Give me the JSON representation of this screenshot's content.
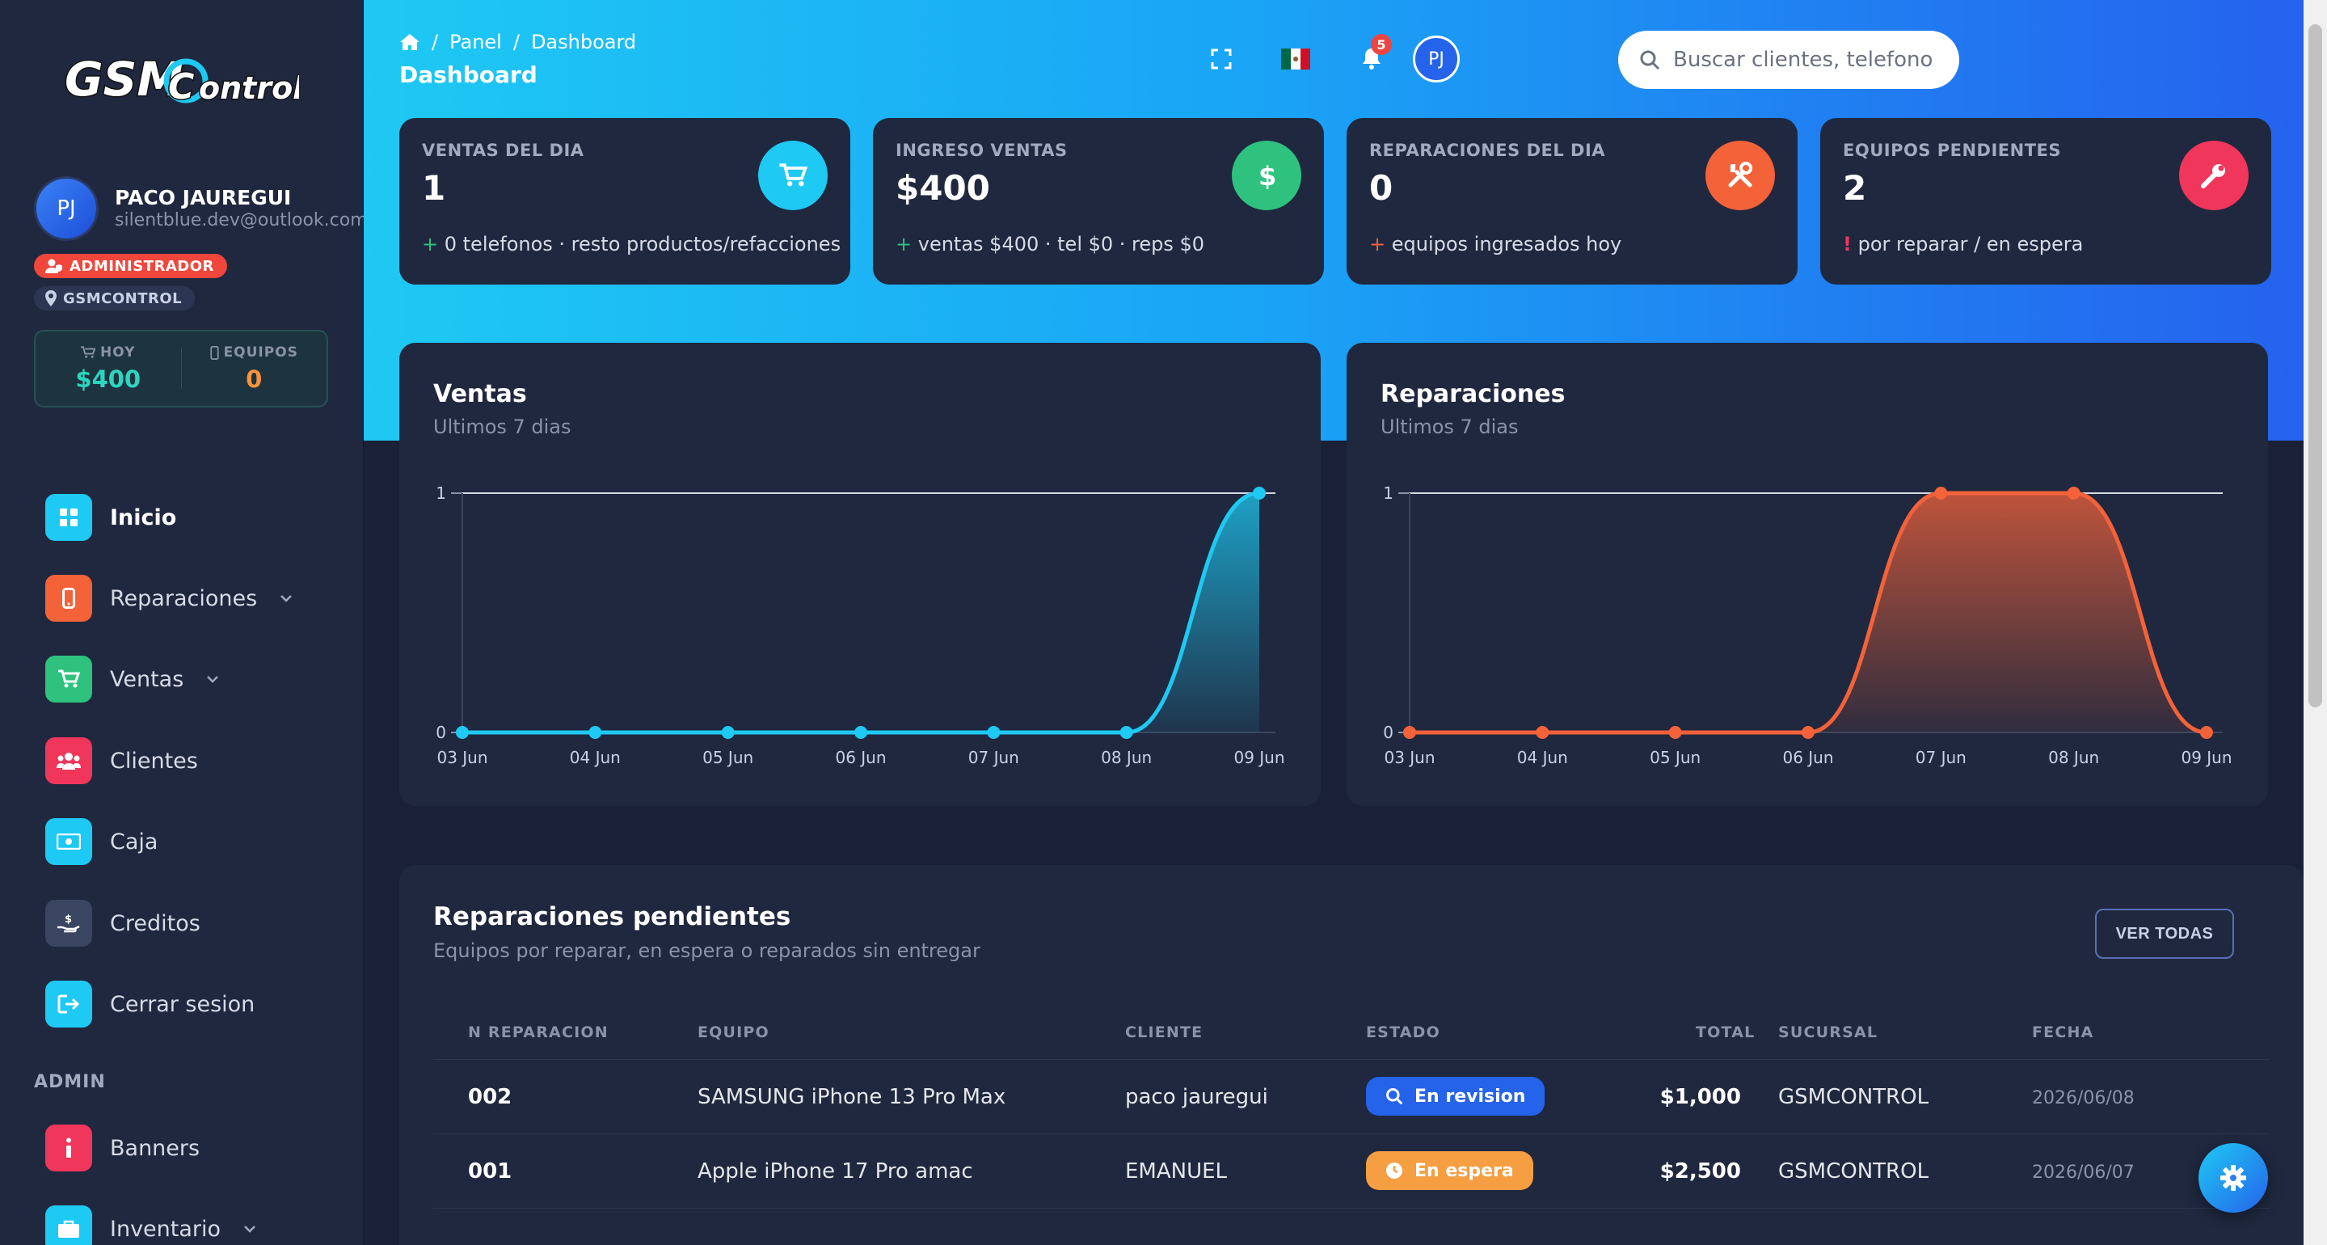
{
  "brand": {
    "logo_text": "GSM CONTROL"
  },
  "user": {
    "initials": "PJ",
    "name": "PACO JAUREGUI",
    "email": "silentblue.dev@outlook.com",
    "role": "ADMINISTRADOR",
    "branch": "GSMCONTROL"
  },
  "mini_stats": [
    {
      "label": "HOY",
      "value": "$400",
      "color": "#2dd4bf",
      "icon": "cart-icon"
    },
    {
      "label": "EQUIPOS",
      "value": "0",
      "color": "#fb923c",
      "icon": "phone-icon"
    }
  ],
  "nav": {
    "items": [
      {
        "label": "Inicio",
        "icon": "grid-icon",
        "color": "#1ec9f3",
        "active": true
      },
      {
        "label": "Reparaciones",
        "icon": "phone-icon",
        "color": "#f4623a",
        "dropdown": true
      },
      {
        "label": "Ventas",
        "icon": "cart-icon",
        "color": "#2ec27e",
        "dropdown": true
      },
      {
        "label": "Clientes",
        "icon": "users-icon",
        "color": "#f0365b"
      },
      {
        "label": "Caja",
        "icon": "cash-icon",
        "color": "#1ec9f3"
      },
      {
        "label": "Creditos",
        "icon": "hand-dollar-icon",
        "color": "#3a4562"
      },
      {
        "label": "Cerrar sesion",
        "icon": "logout-icon",
        "color": "#1ec9f3"
      }
    ],
    "section_admin": "ADMIN",
    "admin_items": [
      {
        "label": "Banners",
        "icon": "info-icon",
        "color": "#f0365b"
      },
      {
        "label": "Inventario",
        "icon": "briefcase-icon",
        "color": "#1ec9f3",
        "dropdown": true
      }
    ]
  },
  "header": {
    "breadcrumb": [
      "Panel",
      "Dashboard"
    ],
    "title": "Dashboard",
    "search_placeholder": "Buscar clientes, telefono",
    "notifications": "5",
    "avatar": "PJ"
  },
  "stat_cards": [
    {
      "label": "VENTAS DEL DIA",
      "value": "1",
      "prefix": "+",
      "prefix_color": "#2ec27e",
      "foot": "0 telefonos · resto productos/refacciones",
      "icon": "cart-icon",
      "color": "#1ec9f3"
    },
    {
      "label": "INGRESO VENTAS",
      "value": "$400",
      "prefix": "+",
      "prefix_color": "#2ec27e",
      "foot": "ventas $400 · tel $0 · reps $0",
      "icon": "dollar-icon",
      "color": "#2ec27e"
    },
    {
      "label": "REPARACIONES DEL DIA",
      "value": "0",
      "prefix": "+",
      "prefix_color": "#f4623a",
      "foot": "equipos ingresados hoy",
      "icon": "tools-icon",
      "color": "#f4623a"
    },
    {
      "label": "EQUIPOS PENDIENTES",
      "value": "2",
      "prefix": "!",
      "prefix_color": "#f0365b",
      "foot": "por reparar / en espera",
      "icon": "wrench-icon",
      "color": "#f0365b"
    }
  ],
  "chart_data": [
    {
      "type": "area",
      "title": "Ventas",
      "subtitle": "Ultimos 7 dias",
      "categories": [
        "03 Jun",
        "04 Jun",
        "05 Jun",
        "06 Jun",
        "07 Jun",
        "08 Jun",
        "09 Jun"
      ],
      "values": [
        0,
        0,
        0,
        0,
        0,
        0,
        1
      ],
      "ylim": [
        0,
        1
      ],
      "yticks": [
        "0",
        "1"
      ],
      "color": "#1ec9f3"
    },
    {
      "type": "area",
      "title": "Reparaciones",
      "subtitle": "Ultimos 7 dias",
      "categories": [
        "03 Jun",
        "04 Jun",
        "05 Jun",
        "06 Jun",
        "07 Jun",
        "08 Jun",
        "09 Jun"
      ],
      "values": [
        0,
        0,
        0,
        0,
        1,
        1,
        0
      ],
      "ylim": [
        0,
        1
      ],
      "yticks": [
        "0",
        "1"
      ],
      "color": "#f4623a"
    }
  ],
  "pending": {
    "title": "Reparaciones pendientes",
    "subtitle": "Equipos por reparar, en espera o reparados sin entregar",
    "button": "VER TODAS",
    "columns": [
      "N REPARACION",
      "EQUIPO",
      "CLIENTE",
      "ESTADO",
      "TOTAL",
      "SUCURSAL",
      "FECHA"
    ],
    "rows": [
      {
        "num": "002",
        "equipo": "SAMSUNG iPhone 13 Pro Max",
        "cliente": "paco jauregui",
        "estado": "En revision",
        "estado_color": "#2563eb",
        "estado_icon": "search-icon",
        "total": "$1,000",
        "sucursal": "GSMCONTROL",
        "fecha": "2026/06/08"
      },
      {
        "num": "001",
        "equipo": "Apple iPhone 17 Pro amac",
        "cliente": "EMANUEL",
        "estado": "En espera",
        "estado_color": "#f59e42",
        "estado_icon": "clock-icon",
        "total": "$2,500",
        "sucursal": "GSMCONTROL",
        "fecha": "2026/06/07"
      }
    ]
  }
}
